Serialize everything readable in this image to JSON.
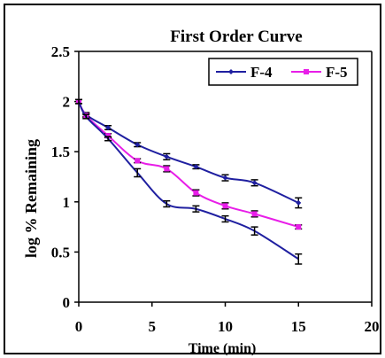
{
  "chart_data": {
    "type": "line",
    "title": "First Order Curve",
    "xlabel": "Time (min)",
    "ylabel": "log % Remaining",
    "xlim": [
      0,
      20
    ],
    "ylim": [
      0,
      2.5
    ],
    "x_ticks": [
      "0",
      "5",
      "10",
      "15",
      "20"
    ],
    "y_ticks": [
      "0",
      "0.5",
      "1",
      "1.5",
      "2",
      "2.5"
    ],
    "x_tick_values": [
      0,
      5,
      10,
      15,
      20
    ],
    "y_tick_values": [
      0,
      0.5,
      1,
      1.5,
      2,
      2.5
    ],
    "grid": false,
    "legend_position": "top-right",
    "series": [
      {
        "name": "F-4",
        "color": "#1f1fa0",
        "marker": "diamond",
        "x": [
          0,
          0.5,
          2,
          4,
          6,
          8,
          10,
          12,
          15
        ],
        "y": [
          2.0,
          1.87,
          1.74,
          1.57,
          1.45,
          1.35,
          1.24,
          1.19,
          0.99
        ],
        "error": [
          0.02,
          0.02,
          0.02,
          0.02,
          0.03,
          0.02,
          0.03,
          0.03,
          0.05
        ]
      },
      {
        "name": "F-5",
        "color": "#e81ee8",
        "marker": "square",
        "x": [
          0,
          0.5,
          2,
          4,
          6,
          8,
          10,
          12,
          15
        ],
        "y": [
          2.0,
          1.86,
          1.66,
          1.41,
          1.33,
          1.09,
          0.96,
          0.88,
          0.75
        ],
        "error": [
          0.02,
          0.02,
          0.02,
          0.02,
          0.03,
          0.03,
          0.03,
          0.03,
          0.02
        ]
      },
      {
        "name": "",
        "color": "#1f1fa0",
        "marker": "none",
        "x": [
          0,
          0.5,
          2,
          4,
          6,
          8,
          10,
          12,
          15
        ],
        "y": [
          2.0,
          1.85,
          1.63,
          1.29,
          0.98,
          0.93,
          0.83,
          0.71,
          0.43
        ],
        "error": [
          0.02,
          0.02,
          0.02,
          0.04,
          0.03,
          0.03,
          0.03,
          0.04,
          0.05
        ]
      }
    ]
  }
}
